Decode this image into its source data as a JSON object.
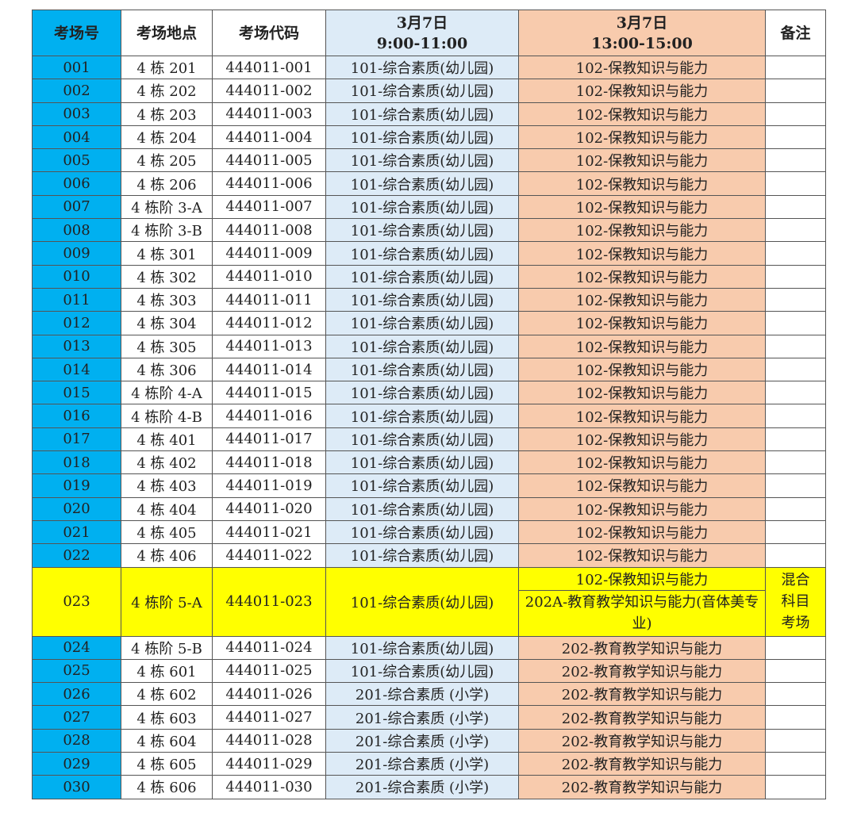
{
  "colors": {
    "number_col": "#00B0F0",
    "morning_col": "#DDEBF7",
    "afternoon_col": "#F8CBAD",
    "mixed_row": "#FFFF00"
  },
  "header": {
    "no": "考场号",
    "place": "考场地点",
    "code": "考场代码",
    "am_date": "3月7日",
    "am_time": "9:00-11:00",
    "pm_date": "3月7日",
    "pm_time": "13:00-15:00",
    "note": "备注"
  },
  "rows_a": [
    [
      "001",
      "4 栋 201",
      "444011-001",
      "101-综合素质(幼儿园)",
      "102-保教知识与能力",
      ""
    ],
    [
      "002",
      "4 栋 202",
      "444011-002",
      "101-综合素质(幼儿园)",
      "102-保教知识与能力",
      ""
    ],
    [
      "003",
      "4 栋 203",
      "444011-003",
      "101-综合素质(幼儿园)",
      "102-保教知识与能力",
      ""
    ],
    [
      "004",
      "4 栋 204",
      "444011-004",
      "101-综合素质(幼儿园)",
      "102-保教知识与能力",
      ""
    ],
    [
      "005",
      "4 栋 205",
      "444011-005",
      "101-综合素质(幼儿园)",
      "102-保教知识与能力",
      ""
    ],
    [
      "006",
      "4 栋 206",
      "444011-006",
      "101-综合素质(幼儿园)",
      "102-保教知识与能力",
      ""
    ],
    [
      "007",
      "4 栋阶 3-A",
      "444011-007",
      "101-综合素质(幼儿园)",
      "102-保教知识与能力",
      ""
    ],
    [
      "008",
      "4 栋阶 3-B",
      "444011-008",
      "101-综合素质(幼儿园)",
      "102-保教知识与能力",
      ""
    ],
    [
      "009",
      "4 栋 301",
      "444011-009",
      "101-综合素质(幼儿园)",
      "102-保教知识与能力",
      ""
    ],
    [
      "010",
      "4 栋 302",
      "444011-010",
      "101-综合素质(幼儿园)",
      "102-保教知识与能力",
      ""
    ],
    [
      "011",
      "4 栋 303",
      "444011-011",
      "101-综合素质(幼儿园)",
      "102-保教知识与能力",
      ""
    ],
    [
      "012",
      "4 栋 304",
      "444011-012",
      "101-综合素质(幼儿园)",
      "102-保教知识与能力",
      ""
    ],
    [
      "013",
      "4 栋 305",
      "444011-013",
      "101-综合素质(幼儿园)",
      "102-保教知识与能力",
      ""
    ],
    [
      "014",
      "4 栋 306",
      "444011-014",
      "101-综合素质(幼儿园)",
      "102-保教知识与能力",
      ""
    ],
    [
      "015",
      "4 栋阶 4-A",
      "444011-015",
      "101-综合素质(幼儿园)",
      "102-保教知识与能力",
      ""
    ],
    [
      "016",
      "4 栋阶 4-B",
      "444011-016",
      "101-综合素质(幼儿园)",
      "102-保教知识与能力",
      ""
    ],
    [
      "017",
      "4 栋 401",
      "444011-017",
      "101-综合素质(幼儿园)",
      "102-保教知识与能力",
      ""
    ],
    [
      "018",
      "4 栋 402",
      "444011-018",
      "101-综合素质(幼儿园)",
      "102-保教知识与能力",
      ""
    ],
    [
      "019",
      "4 栋 403",
      "444011-019",
      "101-综合素质(幼儿园)",
      "102-保教知识与能力",
      ""
    ],
    [
      "020",
      "4 栋 404",
      "444011-020",
      "101-综合素质(幼儿园)",
      "102-保教知识与能力",
      ""
    ],
    [
      "021",
      "4 栋 405",
      "444011-021",
      "101-综合素质(幼儿园)",
      "102-保教知识与能力",
      ""
    ],
    [
      "022",
      "4 栋 406",
      "444011-022",
      "101-综合素质(幼儿园)",
      "102-保教知识与能力",
      ""
    ]
  ],
  "mixed_row": {
    "no": "023",
    "place": "4 栋阶 5-A",
    "code": "444011-023",
    "am": "101-综合素质(幼儿园)",
    "pm_1": "102-保教知识与能力",
    "pm_2": "202A-教育教学知识与能力(音体美专业)",
    "note": "混合科目考场"
  },
  "rows_b": [
    [
      "024",
      "4 栋阶 5-B",
      "444011-024",
      "101-综合素质(幼儿园)",
      "202-教育教学知识与能力",
      ""
    ],
    [
      "025",
      "4 栋 601",
      "444011-025",
      "101-综合素质(幼儿园)",
      "202-教育教学知识与能力",
      ""
    ],
    [
      "026",
      "4 栋 602",
      "444011-026",
      "201-综合素质 (小学)",
      "202-教育教学知识与能力",
      ""
    ],
    [
      "027",
      "4 栋 603",
      "444011-027",
      "201-综合素质 (小学)",
      "202-教育教学知识与能力",
      ""
    ],
    [
      "028",
      "4 栋 604",
      "444011-028",
      "201-综合素质 (小学)",
      "202-教育教学知识与能力",
      ""
    ],
    [
      "029",
      "4 栋 605",
      "444011-029",
      "201-综合素质 (小学)",
      "202-教育教学知识与能力",
      ""
    ],
    [
      "030",
      "4 栋 606",
      "444011-030",
      "201-综合素质 (小学)",
      "202-教育教学知识与能力",
      ""
    ]
  ]
}
